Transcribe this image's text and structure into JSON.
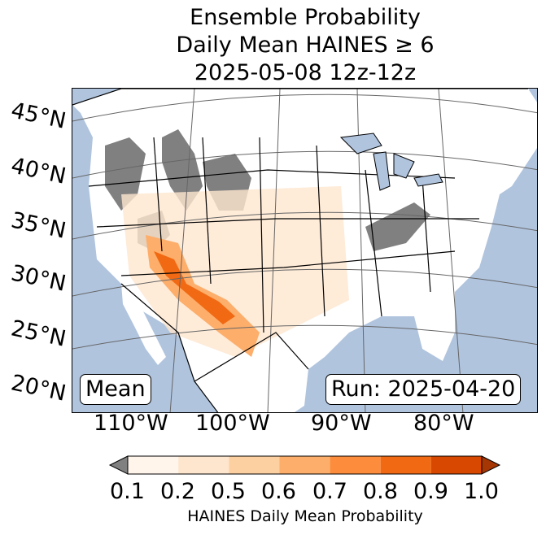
{
  "title": {
    "line1": "Ensemble Probability",
    "line2": "Daily Mean HAINES ≥ 6",
    "line3": "2025-05-08 12z-12z"
  },
  "map": {
    "colors": {
      "ocean": "#b0c4de",
      "land": "#ffffff",
      "gray_no_data": "#808080",
      "border": "#000000",
      "graticule": "#666666"
    },
    "lat_labels": [
      "45°N",
      "40°N",
      "35°N",
      "30°N",
      "25°N",
      "20°N"
    ],
    "lon_labels": [
      "110°W",
      "100°W",
      "90°W",
      "80°W"
    ],
    "mean_label": "Mean",
    "run_label": "Run: 2025-04-20"
  },
  "colorbar": {
    "label": "HAINES Daily Mean Probability",
    "ticks": [
      "0.1",
      "0.2",
      "0.5",
      "0.6",
      "0.7",
      "0.8",
      "0.9",
      "1.0"
    ],
    "colors": [
      "#fff5eb",
      "#fee6ce",
      "#fdd0a2",
      "#fdae6b",
      "#fd8d3c",
      "#f16913",
      "#d94801"
    ],
    "under_color": "#808080",
    "over_color": "#a63603"
  }
}
